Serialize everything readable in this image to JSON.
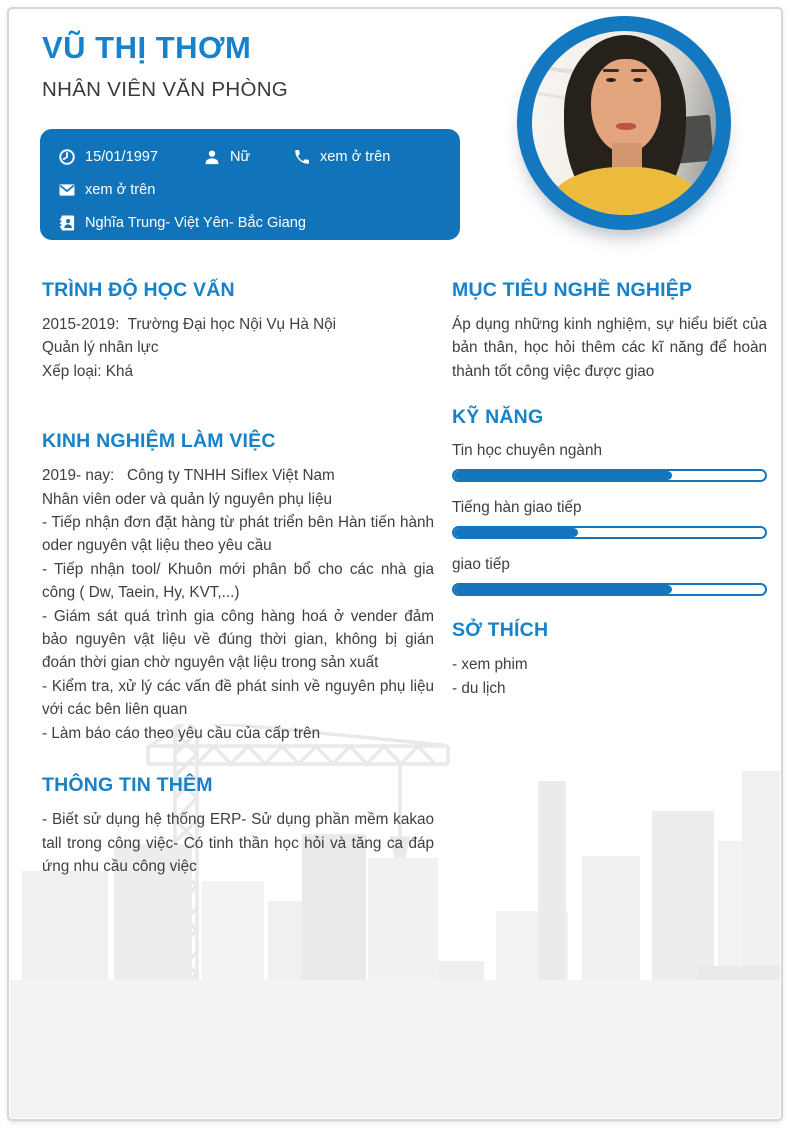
{
  "colors": {
    "accent": "#1781ca",
    "info_box": "#1173b9",
    "progress": "#1576bd",
    "text": "#3f3f3f"
  },
  "header": {
    "name": "VŨ THỊ THƠM",
    "title": "NHÂN VIÊN VĂN PHÒNG",
    "birthday": "15/01/1997",
    "gender": "Nữ",
    "phone_note": "xem ở trên",
    "email_note": "xem ở trên",
    "address": "Nghĩa Trung- Việt Yên- Bắc Giang"
  },
  "icons": {
    "birthday": "clock-icon",
    "gender": "person-icon",
    "phone": "phone-icon",
    "email": "envelope-icon",
    "address": "contact-card-icon",
    "photo": "profile-photo"
  },
  "sections": {
    "education": {
      "title": "TRÌNH ĐỘ HỌC VẤN",
      "lines": [
        "2015-2019:  Trường Đại học Nội Vụ Hà Nội",
        "Quản lý nhân lực",
        "Xếp loại: Khá"
      ]
    },
    "experience": {
      "title": "KINH NGHIỆM LÀM VIỆC",
      "period_line": "2019- nay:   Công ty TNHH Siflex Việt Nam",
      "role_line": "Nhân viên oder và quản lý nguyên phụ liệu",
      "bullets": [
        "- Tiếp nhận đơn đặt hàng từ phát triển bên Hàn tiến hành oder nguyên vật liệu theo yêu cầu",
        "- Tiếp nhận tool/ Khuôn mới phân bổ cho các nhà gia công ( Dw, Taein, Hy, KVT,...)",
        "- Giám sát quá trình gia công hàng hoá ở vender đảm bảo nguyên vật liệu về đúng thời gian, không bị gián đoán thời gian chờ nguyên vật liệu trong sản xuất",
        "- Kiểm tra, xử lý các vấn đề phát sinh về nguyên phụ liệu với các bên liên quan",
        "- Làm báo cáo theo yêu cầu của cấp trên"
      ]
    },
    "additional": {
      "title": "THÔNG TIN THÊM",
      "text": "- Biết sử dụng hệ thống ERP- Sử dụng phần mềm kakao tall trong công việc- Có tinh thần học hỏi và tăng ca đáp ứng nhu cầu công việc"
    },
    "objective": {
      "title": "MỤC TIÊU NGHỀ NGHIỆP",
      "text": "Áp dụng những kinh nghiệm, sự hiểu biết của bản thân, học hỏi thêm các kĩ năng để hoàn thành tốt công việc được giao"
    },
    "skills": {
      "title": "KỸ NĂNG",
      "items": [
        {
          "label": "Tin học chuyên ngành",
          "percent": 70
        },
        {
          "label": "Tiếng hàn giao tiếp",
          "percent": 40
        },
        {
          "label": "giao tiếp",
          "percent": 70
        }
      ]
    },
    "hobbies": {
      "title": "SỞ THÍCH",
      "items": [
        "- xem phim",
        "- du lịch"
      ]
    }
  }
}
